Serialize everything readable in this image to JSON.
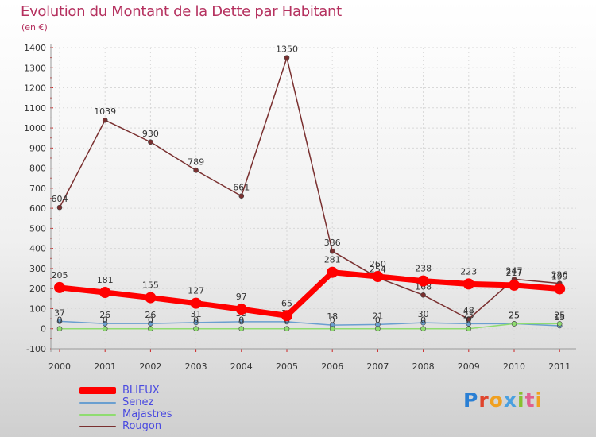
{
  "chart_data": {
    "type": "line",
    "title": "Evolution du Montant de la Dette par Habitant",
    "subtitle": "(en €)",
    "xlabel": "",
    "ylabel": "",
    "ylim": [
      -100,
      1400
    ],
    "yticks": [
      "-100",
      "0",
      "100",
      "200",
      "300",
      "400",
      "500",
      "600",
      "700",
      "800",
      "900",
      "1000",
      "1100",
      "1200",
      "1300",
      "1400"
    ],
    "categories": [
      "2000",
      "2001",
      "2002",
      "2003",
      "2004",
      "2005",
      "2006",
      "2007",
      "2008",
      "2009",
      "2010",
      "2011"
    ],
    "series": [
      {
        "name": "BLIEUX",
        "color": "#ff0000",
        "width": 7,
        "values": [
          205,
          181,
          155,
          127,
          97,
          65,
          281,
          260,
          238,
          223,
          217,
          199
        ],
        "labels": [
          "205",
          "181",
          "155",
          "127",
          "97",
          "65",
          "281",
          "260",
          "238",
          "223",
          "217",
          "199"
        ]
      },
      {
        "name": "Senez",
        "color": "#6a9fd0",
        "width": 1.5,
        "values": [
          37,
          26,
          26,
          31,
          35,
          35,
          18,
          21,
          30,
          25,
          25,
          15
        ],
        "labels": [
          "37",
          "26",
          "26",
          "31",
          "35",
          "35",
          "18",
          "21",
          "30",
          "25",
          "25",
          "15"
        ]
      },
      {
        "name": "Majastres",
        "color": "#8fdc70",
        "width": 1.5,
        "values": [
          0,
          0,
          0,
          0,
          0,
          0,
          0,
          0,
          0,
          0,
          25,
          25
        ],
        "labels": [
          "0",
          "0",
          "0",
          "0",
          "0",
          "0",
          "0",
          "0",
          "0",
          "0",
          "25",
          "25"
        ]
      },
      {
        "name": "Rougon",
        "color": "#7a3030",
        "width": 1.5,
        "values": [
          604,
          1039,
          930,
          789,
          661,
          1350,
          386,
          254,
          168,
          48,
          247,
          226
        ],
        "labels": [
          "604",
          "1039",
          "930",
          "789",
          "661",
          "1350",
          "386",
          "254",
          "168",
          "48",
          "247",
          "226"
        ]
      }
    ]
  },
  "legend": [
    {
      "label": "BLIEUX",
      "color": "#ff0000"
    },
    {
      "label": "Senez",
      "color": "#6a9fd0"
    },
    {
      "label": "Majastres",
      "color": "#8fdc70"
    },
    {
      "label": "Rougon",
      "color": "#7a3030"
    }
  ],
  "logo": {
    "p": "P",
    "r": "r",
    "o": "o",
    "x": "x",
    "i1": "i",
    "t": "t",
    "i2": "i"
  }
}
